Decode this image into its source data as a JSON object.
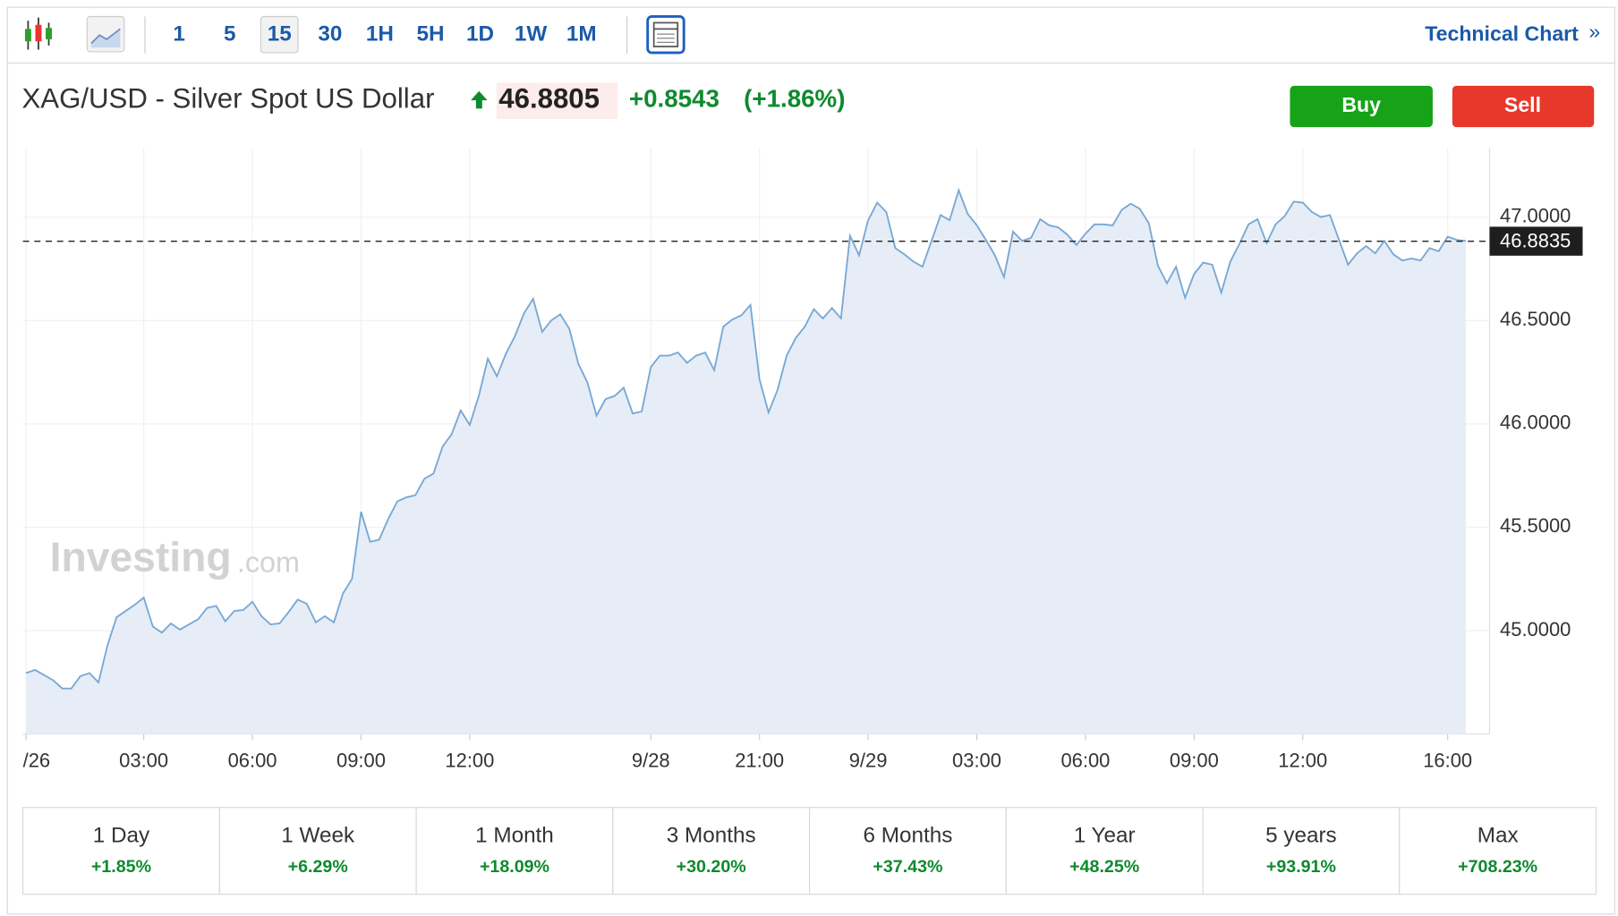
{
  "toolbar": {
    "intervals": [
      "1",
      "5",
      "15",
      "30",
      "1H",
      "5H",
      "1D",
      "1W",
      "1M"
    ],
    "active_interval": 2,
    "technical_chart": "Technical Chart",
    "chevron": "»"
  },
  "header": {
    "title": "XAG/USD - Silver Spot US Dollar",
    "price": "46.8805",
    "change": "+0.8543",
    "change_pct": "(+1.86%)"
  },
  "actions": {
    "buy": "Buy",
    "sell": "Sell"
  },
  "watermark": {
    "brand": "Investing",
    "suffix": ".com"
  },
  "chart_data": {
    "type": "area",
    "color": "#78a8d4",
    "fill": "#e6edf7",
    "grid": true,
    "categories": [
      "/26",
      null,
      null,
      null,
      null,
      null,
      null,
      null,
      null,
      null,
      null,
      null,
      null,
      "03:00",
      null,
      null,
      null,
      null,
      null,
      null,
      null,
      null,
      null,
      null,
      null,
      "06:00",
      null,
      null,
      null,
      null,
      null,
      null,
      null,
      null,
      null,
      null,
      null,
      "09:00",
      null,
      null,
      null,
      null,
      null,
      null,
      null,
      null,
      null,
      null,
      null,
      "12:00",
      null,
      null,
      null,
      null,
      null,
      null,
      null,
      null,
      null,
      null,
      null,
      null,
      null,
      null,
      null,
      null,
      null,
      null,
      null,
      "9/28",
      null,
      null,
      null,
      null,
      null,
      null,
      null,
      null,
      null,
      null,
      null,
      "21:00",
      null,
      null,
      null,
      null,
      null,
      null,
      null,
      null,
      null,
      null,
      null,
      "9/29",
      null,
      null,
      null,
      null,
      null,
      null,
      null,
      null,
      null,
      null,
      null,
      "03:00",
      null,
      null,
      null,
      null,
      null,
      null,
      null,
      null,
      null,
      null,
      null,
      "06:00",
      null,
      null,
      null,
      null,
      null,
      null,
      null,
      null,
      null,
      null,
      null,
      "09:00",
      null,
      null,
      null,
      null,
      null,
      null,
      null,
      null,
      null,
      null,
      null,
      "12:00",
      null,
      null,
      null,
      null,
      null,
      null,
      null,
      null,
      null,
      null,
      null,
      null,
      null,
      null,
      null,
      "16:00",
      null,
      null
    ],
    "values": [
      44.795,
      44.81,
      44.785,
      44.76,
      44.72,
      44.72,
      44.78,
      44.795,
      44.75,
      44.93,
      45.065,
      45.095,
      45.125,
      45.16,
      45.02,
      44.99,
      45.035,
      45.005,
      45.03,
      45.055,
      45.11,
      45.12,
      45.045,
      45.095,
      45.1,
      45.14,
      45.07,
      45.03,
      45.035,
      45.09,
      45.15,
      45.13,
      45.04,
      45.07,
      45.04,
      45.18,
      45.25,
      45.575,
      45.43,
      45.44,
      45.54,
      45.625,
      45.645,
      45.655,
      45.735,
      45.76,
      45.89,
      45.95,
      46.065,
      45.995,
      46.135,
      46.315,
      46.23,
      46.34,
      46.425,
      46.535,
      46.605,
      46.445,
      46.5,
      46.53,
      46.46,
      46.29,
      46.2,
      46.04,
      46.12,
      46.135,
      46.175,
      46.05,
      46.06,
      46.275,
      46.33,
      46.33,
      46.345,
      46.295,
      46.33,
      46.345,
      46.26,
      46.47,
      46.505,
      46.525,
      46.575,
      46.215,
      46.055,
      46.165,
      46.33,
      46.415,
      46.47,
      46.555,
      46.51,
      46.56,
      46.51,
      46.91,
      46.815,
      46.985,
      47.07,
      47.025,
      46.85,
      46.82,
      46.785,
      46.76,
      46.885,
      47.01,
      46.985,
      47.13,
      47.015,
      46.96,
      46.89,
      46.815,
      46.71,
      46.93,
      46.885,
      46.9,
      46.99,
      46.96,
      46.95,
      46.915,
      46.865,
      46.92,
      46.965,
      46.965,
      46.96,
      47.035,
      47.065,
      47.04,
      46.97,
      46.765,
      46.68,
      46.76,
      46.61,
      46.725,
      46.78,
      46.77,
      46.635,
      46.785,
      46.87,
      46.965,
      46.99,
      46.875,
      46.965,
      47.005,
      47.075,
      47.07,
      47.025,
      47.0,
      47.01,
      46.89,
      46.77,
      46.825,
      46.86,
      46.825,
      46.885,
      46.82,
      46.79,
      46.8,
      46.79,
      46.85,
      46.835,
      46.905,
      46.89,
      46.885
    ],
    "ylim": [
      44.5,
      47.335
    ],
    "yticks": [
      {
        "value": 45,
        "label": "45.0000"
      },
      {
        "value": 45.5,
        "label": "45.5000"
      },
      {
        "value": 46,
        "label": "46.0000"
      },
      {
        "value": 46.5,
        "label": "46.5000"
      },
      {
        "value": 47,
        "label": "47.0000"
      }
    ],
    "last_price": 46.8835
  },
  "performance": [
    {
      "period": "1 Day",
      "change": "+1.85%"
    },
    {
      "period": "1 Week",
      "change": "+6.29%"
    },
    {
      "period": "1 Month",
      "change": "+18.09%"
    },
    {
      "period": "3 Months",
      "change": "+30.20%"
    },
    {
      "period": "6 Months",
      "change": "+37.43%"
    },
    {
      "period": "1 Year",
      "change": "+48.25%"
    },
    {
      "period": "5 years",
      "change": "+93.91%"
    },
    {
      "period": "Max",
      "change": "+708.23%"
    }
  ]
}
